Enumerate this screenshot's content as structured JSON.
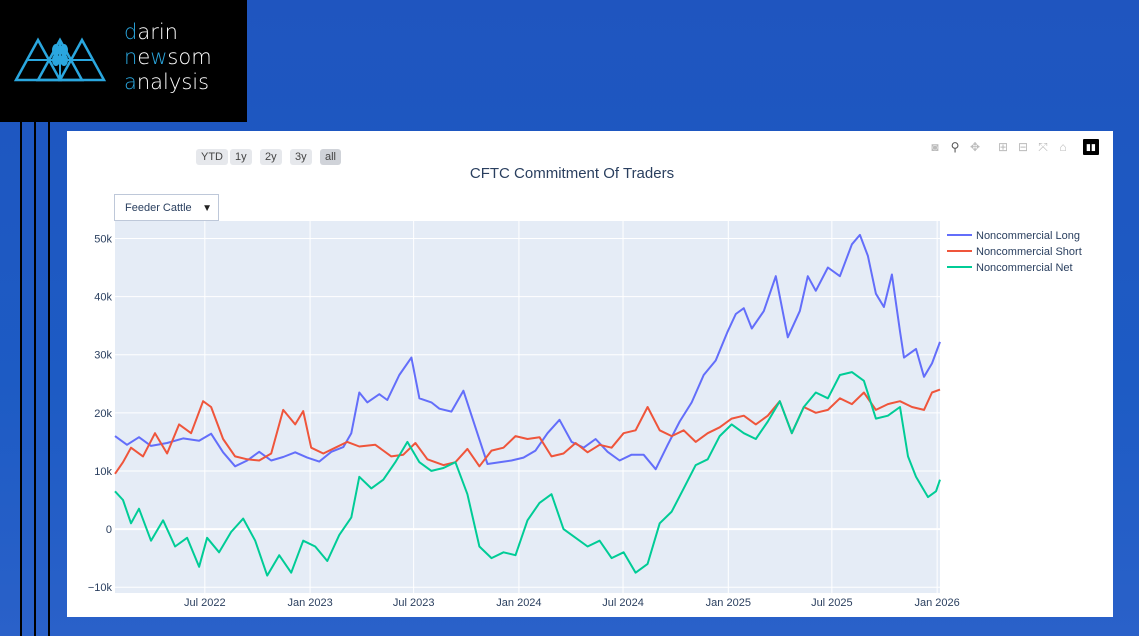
{
  "brand": {
    "lines": [
      {
        "first": "d",
        "rest": "arin"
      },
      {
        "first": "n",
        "mid": "e",
        "accent2": "w",
        "rest": "som"
      },
      {
        "first": "a",
        "rest": "nalysis"
      }
    ]
  },
  "range_selector": [
    "YTD",
    "1y",
    "2y",
    "3y",
    "all"
  ],
  "range_selector_active": "all",
  "dropdown_value": "Feeder Cattle",
  "modebar_icons": [
    "camera-icon",
    "zoom-icon",
    "pan-icon",
    "zoom-in-icon",
    "zoom-out-icon",
    "autoscale-icon",
    "home-icon",
    "plotly-logo-icon"
  ],
  "chart_data": {
    "type": "line",
    "title": "CFTC Commitment Of Traders",
    "x_ticks": [
      "Jul 2022",
      "Jan 2023",
      "Jul 2023",
      "Jan 2024",
      "Jul 2024",
      "Jan 2025",
      "Jul 2025",
      "Jan 2026"
    ],
    "y_ticks": [
      "−10k",
      "0",
      "10k",
      "20k",
      "30k",
      "40k",
      "50k"
    ],
    "y_tick_values": [
      -10000,
      0,
      10000,
      20000,
      30000,
      40000,
      50000
    ],
    "ylim": [
      -11000,
      53000
    ],
    "xlim": [
      "2022-01-25",
      "2026-01-06"
    ],
    "grid": true,
    "legend_position": "top-right",
    "colors": {
      "long": "#636efa",
      "short": "#ef553b",
      "net": "#00cc96"
    },
    "series": [
      {
        "name": "Noncommercial Long",
        "key": "long",
        "points": [
          [
            "2022-01-25",
            16000
          ],
          [
            "2022-02-15",
            14500
          ],
          [
            "2022-03-08",
            15800
          ],
          [
            "2022-03-29",
            14300
          ],
          [
            "2022-04-26",
            14800
          ],
          [
            "2022-05-24",
            15600
          ],
          [
            "2022-06-21",
            15200
          ],
          [
            "2022-07-12",
            16400
          ],
          [
            "2022-08-02",
            13200
          ],
          [
            "2022-08-23",
            10800
          ],
          [
            "2022-09-13",
            11800
          ],
          [
            "2022-10-04",
            13300
          ],
          [
            "2022-10-25",
            11800
          ],
          [
            "2022-11-15",
            12400
          ],
          [
            "2022-12-06",
            13200
          ],
          [
            "2022-12-27",
            12300
          ],
          [
            "2023-01-17",
            11600
          ],
          [
            "2023-02-07",
            13300
          ],
          [
            "2023-02-28",
            14100
          ],
          [
            "2023-03-14",
            16500
          ],
          [
            "2023-03-28",
            23500
          ],
          [
            "2023-04-11",
            21800
          ],
          [
            "2023-05-02",
            23200
          ],
          [
            "2023-05-16",
            22200
          ],
          [
            "2023-06-06",
            26500
          ],
          [
            "2023-06-27",
            29500
          ],
          [
            "2023-07-11",
            22500
          ],
          [
            "2023-08-01",
            21800
          ],
          [
            "2023-08-15",
            20700
          ],
          [
            "2023-09-05",
            20200
          ],
          [
            "2023-09-26",
            23800
          ],
          [
            "2023-10-17",
            17500
          ],
          [
            "2023-11-07",
            11200
          ],
          [
            "2023-11-28",
            11500
          ],
          [
            "2023-12-19",
            11800
          ],
          [
            "2024-01-09",
            12300
          ],
          [
            "2024-01-30",
            13500
          ],
          [
            "2024-02-20",
            16500
          ],
          [
            "2024-03-12",
            18800
          ],
          [
            "2024-04-02",
            15000
          ],
          [
            "2024-04-23",
            14000
          ],
          [
            "2024-05-14",
            15500
          ],
          [
            "2024-06-04",
            13300
          ],
          [
            "2024-06-25",
            11800
          ],
          [
            "2024-07-16",
            12800
          ],
          [
            "2024-08-06",
            12800
          ],
          [
            "2024-08-27",
            10300
          ],
          [
            "2024-09-17",
            14500
          ],
          [
            "2024-10-08",
            18500
          ],
          [
            "2024-10-29",
            21800
          ],
          [
            "2024-11-19",
            26500
          ],
          [
            "2024-12-10",
            29000
          ],
          [
            "2024-12-31",
            34000
          ],
          [
            "2025-01-14",
            37000
          ],
          [
            "2025-01-28",
            38000
          ],
          [
            "2025-02-11",
            34500
          ],
          [
            "2025-03-04",
            37500
          ],
          [
            "2025-03-25",
            43500
          ],
          [
            "2025-04-15",
            33000
          ],
          [
            "2025-05-06",
            37500
          ],
          [
            "2025-05-20",
            43500
          ],
          [
            "2025-06-03",
            41000
          ],
          [
            "2025-06-24",
            45000
          ],
          [
            "2025-07-15",
            43500
          ],
          [
            "2025-08-05",
            49000
          ],
          [
            "2025-08-19",
            50600
          ],
          [
            "2025-09-02",
            47000
          ],
          [
            "2025-09-16",
            40500
          ],
          [
            "2025-09-30",
            38200
          ],
          [
            "2025-10-14",
            43800
          ],
          [
            "2025-10-28",
            34000
          ],
          [
            "2025-11-04",
            29500
          ],
          [
            "2025-11-25",
            31000
          ],
          [
            "2025-12-09",
            26200
          ],
          [
            "2025-12-23",
            28500
          ],
          [
            "2026-01-06",
            32200
          ]
        ]
      },
      {
        "name": "Noncommercial Short",
        "key": "short",
        "points": [
          [
            "2022-01-25",
            9500
          ],
          [
            "2022-02-08",
            11500
          ],
          [
            "2022-02-22",
            14000
          ],
          [
            "2022-03-15",
            12500
          ],
          [
            "2022-04-05",
            16500
          ],
          [
            "2022-04-26",
            13000
          ],
          [
            "2022-05-17",
            18000
          ],
          [
            "2022-06-07",
            16500
          ],
          [
            "2022-06-28",
            22000
          ],
          [
            "2022-07-12",
            21000
          ],
          [
            "2022-08-02",
            15500
          ],
          [
            "2022-08-23",
            12500
          ],
          [
            "2022-09-13",
            12000
          ],
          [
            "2022-10-04",
            11800
          ],
          [
            "2022-10-25",
            13000
          ],
          [
            "2022-11-15",
            20500
          ],
          [
            "2022-12-06",
            18000
          ],
          [
            "2022-12-20",
            20300
          ],
          [
            "2023-01-03",
            14000
          ],
          [
            "2023-01-24",
            13000
          ],
          [
            "2023-02-14",
            14000
          ],
          [
            "2023-03-07",
            15000
          ],
          [
            "2023-03-28",
            14200
          ],
          [
            "2023-04-25",
            14500
          ],
          [
            "2023-05-23",
            12500
          ],
          [
            "2023-06-13",
            12800
          ],
          [
            "2023-07-04",
            14800
          ],
          [
            "2023-07-25",
            12000
          ],
          [
            "2023-08-22",
            11000
          ],
          [
            "2023-09-12",
            11500
          ],
          [
            "2023-10-03",
            13800
          ],
          [
            "2023-10-24",
            10800
          ],
          [
            "2023-11-14",
            13500
          ],
          [
            "2023-12-05",
            14000
          ],
          [
            "2023-12-26",
            16000
          ],
          [
            "2024-01-16",
            15500
          ],
          [
            "2024-02-06",
            15800
          ],
          [
            "2024-02-27",
            12500
          ],
          [
            "2024-03-19",
            13000
          ],
          [
            "2024-04-09",
            14800
          ],
          [
            "2024-04-30",
            13200
          ],
          [
            "2024-05-21",
            14500
          ],
          [
            "2024-06-11",
            14000
          ],
          [
            "2024-07-02",
            16500
          ],
          [
            "2024-07-23",
            17000
          ],
          [
            "2024-08-13",
            21000
          ],
          [
            "2024-09-03",
            17000
          ],
          [
            "2024-09-24",
            16000
          ],
          [
            "2024-10-15",
            17000
          ],
          [
            "2024-11-05",
            15000
          ],
          [
            "2024-11-26",
            16500
          ],
          [
            "2024-12-17",
            17500
          ],
          [
            "2025-01-07",
            19000
          ],
          [
            "2025-01-28",
            19500
          ],
          [
            "2025-02-18",
            18000
          ],
          [
            "2025-03-11",
            19500
          ],
          [
            "2025-04-01",
            22000
          ],
          [
            "2025-04-22",
            16500
          ],
          [
            "2025-05-13",
            21000
          ],
          [
            "2025-06-03",
            20000
          ],
          [
            "2025-06-24",
            20500
          ],
          [
            "2025-07-15",
            22500
          ],
          [
            "2025-08-05",
            21500
          ],
          [
            "2025-08-26",
            23500
          ],
          [
            "2025-09-16",
            20500
          ],
          [
            "2025-10-07",
            21500
          ],
          [
            "2025-10-28",
            22000
          ],
          [
            "2025-11-18",
            21000
          ],
          [
            "2025-12-09",
            20500
          ],
          [
            "2025-12-23",
            23500
          ],
          [
            "2026-01-06",
            24000
          ]
        ]
      },
      {
        "name": "Noncommercial Net",
        "key": "net",
        "points": [
          [
            "2022-01-25",
            6500
          ],
          [
            "2022-02-08",
            5000
          ],
          [
            "2022-02-22",
            1000
          ],
          [
            "2022-03-08",
            3500
          ],
          [
            "2022-03-29",
            -2000
          ],
          [
            "2022-04-19",
            1500
          ],
          [
            "2022-05-10",
            -3000
          ],
          [
            "2022-05-31",
            -1500
          ],
          [
            "2022-06-21",
            -6500
          ],
          [
            "2022-07-05",
            -1500
          ],
          [
            "2022-07-26",
            -4000
          ],
          [
            "2022-08-16",
            -500
          ],
          [
            "2022-09-06",
            1800
          ],
          [
            "2022-09-27",
            -2000
          ],
          [
            "2022-10-18",
            -8000
          ],
          [
            "2022-11-08",
            -4500
          ],
          [
            "2022-11-29",
            -7500
          ],
          [
            "2022-12-20",
            -2000
          ],
          [
            "2023-01-10",
            -3000
          ],
          [
            "2023-01-31",
            -5500
          ],
          [
            "2023-02-21",
            -1000
          ],
          [
            "2023-03-14",
            2000
          ],
          [
            "2023-03-28",
            9000
          ],
          [
            "2023-04-18",
            7000
          ],
          [
            "2023-05-09",
            8500
          ],
          [
            "2023-05-30",
            11500
          ],
          [
            "2023-06-20",
            15000
          ],
          [
            "2023-07-11",
            11500
          ],
          [
            "2023-08-01",
            10000
          ],
          [
            "2023-08-22",
            10500
          ],
          [
            "2023-09-12",
            11500
          ],
          [
            "2023-10-03",
            6000
          ],
          [
            "2023-10-24",
            -3000
          ],
          [
            "2023-11-14",
            -5000
          ],
          [
            "2023-12-05",
            -4000
          ],
          [
            "2023-12-26",
            -4500
          ],
          [
            "2024-01-16",
            1500
          ],
          [
            "2024-02-06",
            4500
          ],
          [
            "2024-02-27",
            6000
          ],
          [
            "2024-03-19",
            0
          ],
          [
            "2024-04-09",
            -1500
          ],
          [
            "2024-04-30",
            -3000
          ],
          [
            "2024-05-21",
            -2000
          ],
          [
            "2024-06-11",
            -5000
          ],
          [
            "2024-07-02",
            -4000
          ],
          [
            "2024-07-23",
            -7500
          ],
          [
            "2024-08-13",
            -6000
          ],
          [
            "2024-09-03",
            1000
          ],
          [
            "2024-09-24",
            3000
          ],
          [
            "2024-10-15",
            7000
          ],
          [
            "2024-11-05",
            11000
          ],
          [
            "2024-11-26",
            12000
          ],
          [
            "2024-12-17",
            16000
          ],
          [
            "2025-01-07",
            18000
          ],
          [
            "2025-01-28",
            16500
          ],
          [
            "2025-02-18",
            15500
          ],
          [
            "2025-03-11",
            18500
          ],
          [
            "2025-04-01",
            22000
          ],
          [
            "2025-04-22",
            16500
          ],
          [
            "2025-05-13",
            21000
          ],
          [
            "2025-06-03",
            23500
          ],
          [
            "2025-06-24",
            22500
          ],
          [
            "2025-07-15",
            26500
          ],
          [
            "2025-08-05",
            27000
          ],
          [
            "2025-08-26",
            25500
          ],
          [
            "2025-09-16",
            19000
          ],
          [
            "2025-10-07",
            19500
          ],
          [
            "2025-10-28",
            21000
          ],
          [
            "2025-11-11",
            12500
          ],
          [
            "2025-11-25",
            9000
          ],
          [
            "2025-12-16",
            5500
          ],
          [
            "2025-12-30",
            6500
          ],
          [
            "2026-01-06",
            8500
          ]
        ]
      }
    ]
  }
}
